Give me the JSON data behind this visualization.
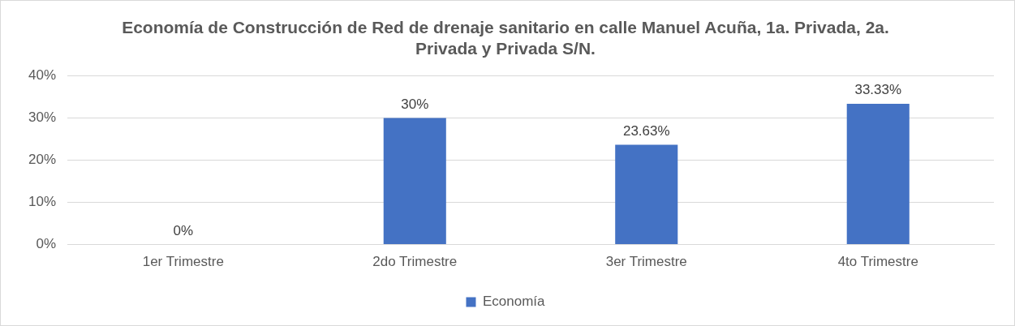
{
  "chart_data": {
    "type": "bar",
    "title": "Economía de Construcción de Red de drenaje sanitario en calle Manuel Acuña, 1a. Privada, 2a. Privada y Privada S/N.",
    "categories": [
      "1er Trimestre",
      "2do Trimestre",
      "3er Trimestre",
      "4to Trimestre"
    ],
    "series": [
      {
        "name": "Economía",
        "color": "#4472c4",
        "values": [
          0,
          30,
          23.63,
          33.33
        ],
        "value_labels": [
          "0%",
          "30%",
          "23.63%",
          "33.33%"
        ]
      }
    ],
    "ylim": [
      0,
      40
    ],
    "yticks": [
      {
        "value": 0,
        "label": "0%"
      },
      {
        "value": 10,
        "label": "10%"
      },
      {
        "value": 20,
        "label": "20%"
      },
      {
        "value": 30,
        "label": "30%"
      },
      {
        "value": 40,
        "label": "40%"
      }
    ],
    "grid": "y",
    "legend": "bottom"
  }
}
